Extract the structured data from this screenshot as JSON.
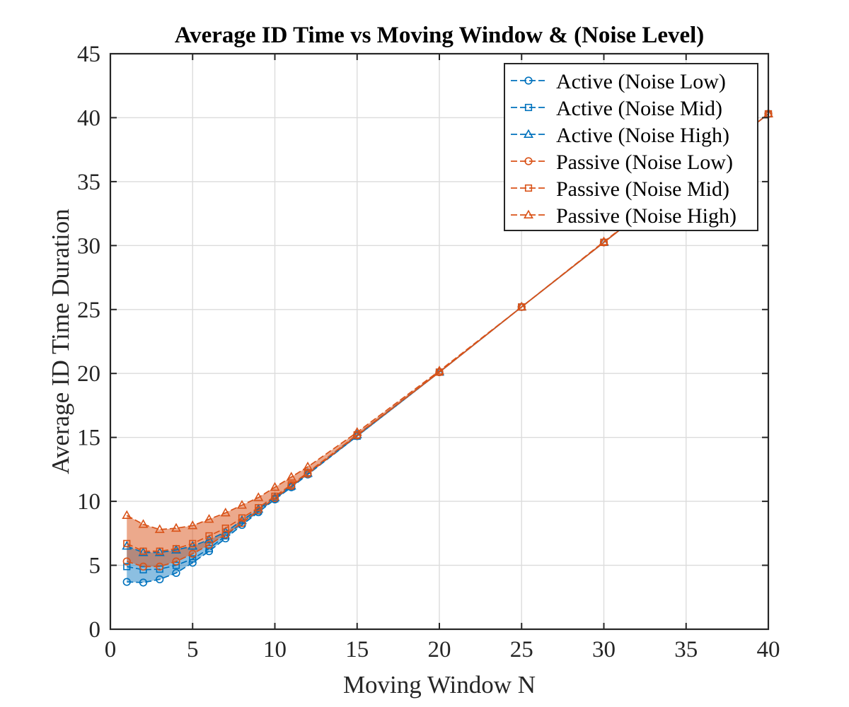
{
  "chart_data": {
    "type": "line",
    "title": "Average ID Time vs Moving Window & (Noise Level)",
    "xlabel": "Moving Window N",
    "ylabel": "Average ID Time Duration",
    "xlim": [
      0,
      40
    ],
    "ylim": [
      0,
      45
    ],
    "xticks": [
      0,
      5,
      10,
      15,
      20,
      25,
      30,
      35,
      40
    ],
    "yticks": [
      0,
      5,
      10,
      15,
      20,
      25,
      30,
      35,
      40,
      45
    ],
    "grid": true,
    "legend_position": "top-right",
    "x": [
      1,
      2,
      3,
      4,
      5,
      6,
      7,
      8,
      9,
      10,
      11,
      12,
      15,
      20,
      25,
      30,
      40
    ],
    "series": [
      {
        "name": "Active (Noise Low)",
        "group": "Active",
        "marker": "circle",
        "color": "#0072BD",
        "values": [
          3.7,
          3.65,
          3.9,
          4.4,
          5.2,
          6.1,
          7.1,
          8.15,
          9.15,
          10.15,
          11.1,
          12.1,
          15.1,
          20.1,
          25.2,
          30.25,
          40.3
        ]
      },
      {
        "name": "Active (Noise Mid)",
        "group": "Active",
        "marker": "square",
        "color": "#0072BD",
        "values": [
          4.9,
          4.65,
          4.7,
          5.0,
          5.5,
          6.3,
          7.3,
          8.3,
          9.25,
          10.2,
          11.15,
          12.15,
          15.1,
          20.1,
          25.2,
          30.25,
          40.3
        ]
      },
      {
        "name": "Active (Noise High)",
        "group": "Active",
        "marker": "triangle",
        "color": "#0072BD",
        "values": [
          6.5,
          6.0,
          6.0,
          6.2,
          6.5,
          7.0,
          7.6,
          8.5,
          9.4,
          10.3,
          11.2,
          12.2,
          15.2,
          20.1,
          25.2,
          30.25,
          40.3
        ]
      },
      {
        "name": "Passive (Noise Low)",
        "group": "Passive",
        "marker": "circle",
        "color": "#D95319",
        "values": [
          5.3,
          4.9,
          4.9,
          5.3,
          5.9,
          6.6,
          7.4,
          8.3,
          9.3,
          10.25,
          11.2,
          12.15,
          15.15,
          20.1,
          25.2,
          30.25,
          40.3
        ]
      },
      {
        "name": "Passive (Noise Mid)",
        "group": "Passive",
        "marker": "square",
        "color": "#D95319",
        "values": [
          6.7,
          6.1,
          6.1,
          6.3,
          6.7,
          7.3,
          7.9,
          8.7,
          9.5,
          10.4,
          11.3,
          12.25,
          15.2,
          20.1,
          25.2,
          30.25,
          40.3
        ]
      },
      {
        "name": "Passive (Noise High)",
        "group": "Passive",
        "marker": "triangle",
        "color": "#D95319",
        "values": [
          8.9,
          8.2,
          7.8,
          7.9,
          8.1,
          8.6,
          9.1,
          9.7,
          10.3,
          11.1,
          11.9,
          12.7,
          15.4,
          20.2,
          25.2,
          30.3,
          40.3
        ]
      }
    ],
    "bands": [
      {
        "group": "Active",
        "color": "#0072BD",
        "opacity": 0.45
      },
      {
        "group": "Passive",
        "color": "#D95319",
        "opacity": 0.5
      }
    ]
  }
}
